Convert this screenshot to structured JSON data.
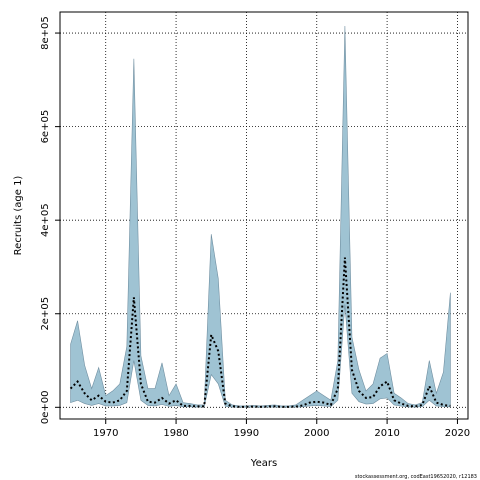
{
  "chart_data": {
    "type": "area",
    "xlabel": "Years",
    "ylabel": "Recruits (age 1)",
    "credit": "stockassessment.org, codEast19652020, r12183",
    "xlim": [
      1963.5,
      2021.5
    ],
    "ylim": [
      -25000,
      845000
    ],
    "x_ticks": [
      1970,
      1980,
      1990,
      2000,
      2010,
      2020
    ],
    "y_ticks": [
      0,
      200000,
      400000,
      600000,
      800000
    ],
    "y_tick_labels": [
      "0e+00",
      "2e+05",
      "4e+05",
      "6e+05",
      "8e+05"
    ],
    "grid": true,
    "band_color": "#9fc3d3",
    "series": [
      {
        "x": [
          1965,
          1966,
          1967,
          1968,
          1969,
          1970,
          1971,
          1972,
          1973,
          1974,
          1975,
          1976,
          1977,
          1978,
          1979,
          1980,
          1981,
          1982,
          1983,
          1984,
          1985,
          1986,
          1987,
          1988,
          1989,
          1990,
          1991,
          1992,
          1993,
          1994,
          1995,
          1996,
          1997,
          1998,
          1999,
          2000,
          2001,
          2002,
          2003,
          2004,
          2005,
          2006,
          2007,
          2008,
          2009,
          2010,
          2011,
          2012,
          2013,
          2014,
          2015,
          2016,
          2017,
          2018,
          2019
        ],
        "median": [
          40000,
          55000,
          30000,
          15000,
          25000,
          12000,
          10000,
          15000,
          35000,
          235000,
          50000,
          12000,
          10000,
          20000,
          8000,
          15000,
          3000,
          3000,
          2000,
          2000,
          155000,
          120000,
          8000,
          2000,
          1000,
          1000,
          1500,
          1000,
          1500,
          2000,
          1000,
          1000,
          1500,
          4000,
          10000,
          12000,
          10000,
          5000,
          40000,
          320000,
          80000,
          35000,
          20000,
          22000,
          45000,
          55000,
          15000,
          8000,
          3000,
          2000,
          5000,
          45000,
          10000,
          5000,
          3000
        ],
        "lower": [
          10000,
          15000,
          8000,
          4000,
          8000,
          3000,
          3000,
          4000,
          10000,
          100000,
          15000,
          4000,
          3000,
          6000,
          2000,
          4000,
          1000,
          1000,
          500,
          500,
          70000,
          50000,
          2000,
          500,
          300,
          300,
          400,
          300,
          400,
          500,
          300,
          300,
          400,
          1000,
          3000,
          4000,
          3000,
          1500,
          15000,
          220000,
          30000,
          12000,
          7000,
          8000,
          18000,
          20000,
          5000,
          2500,
          800,
          500,
          1500,
          15000,
          3000,
          1500,
          800
        ],
        "upper": [
          135000,
          185000,
          90000,
          40000,
          85000,
          25000,
          35000,
          50000,
          130000,
          745000,
          110000,
          40000,
          40000,
          95000,
          25000,
          50000,
          10000,
          8000,
          5000,
          5000,
          370000,
          275000,
          15000,
          5000,
          3000,
          3000,
          4000,
          3000,
          4000,
          5000,
          3000,
          3000,
          5000,
          15000,
          25000,
          35000,
          25000,
          15000,
          100000,
          815000,
          150000,
          80000,
          35000,
          50000,
          105000,
          115000,
          30000,
          20000,
          8000,
          5000,
          10000,
          100000,
          30000,
          75000,
          245000
        ]
      }
    ]
  }
}
